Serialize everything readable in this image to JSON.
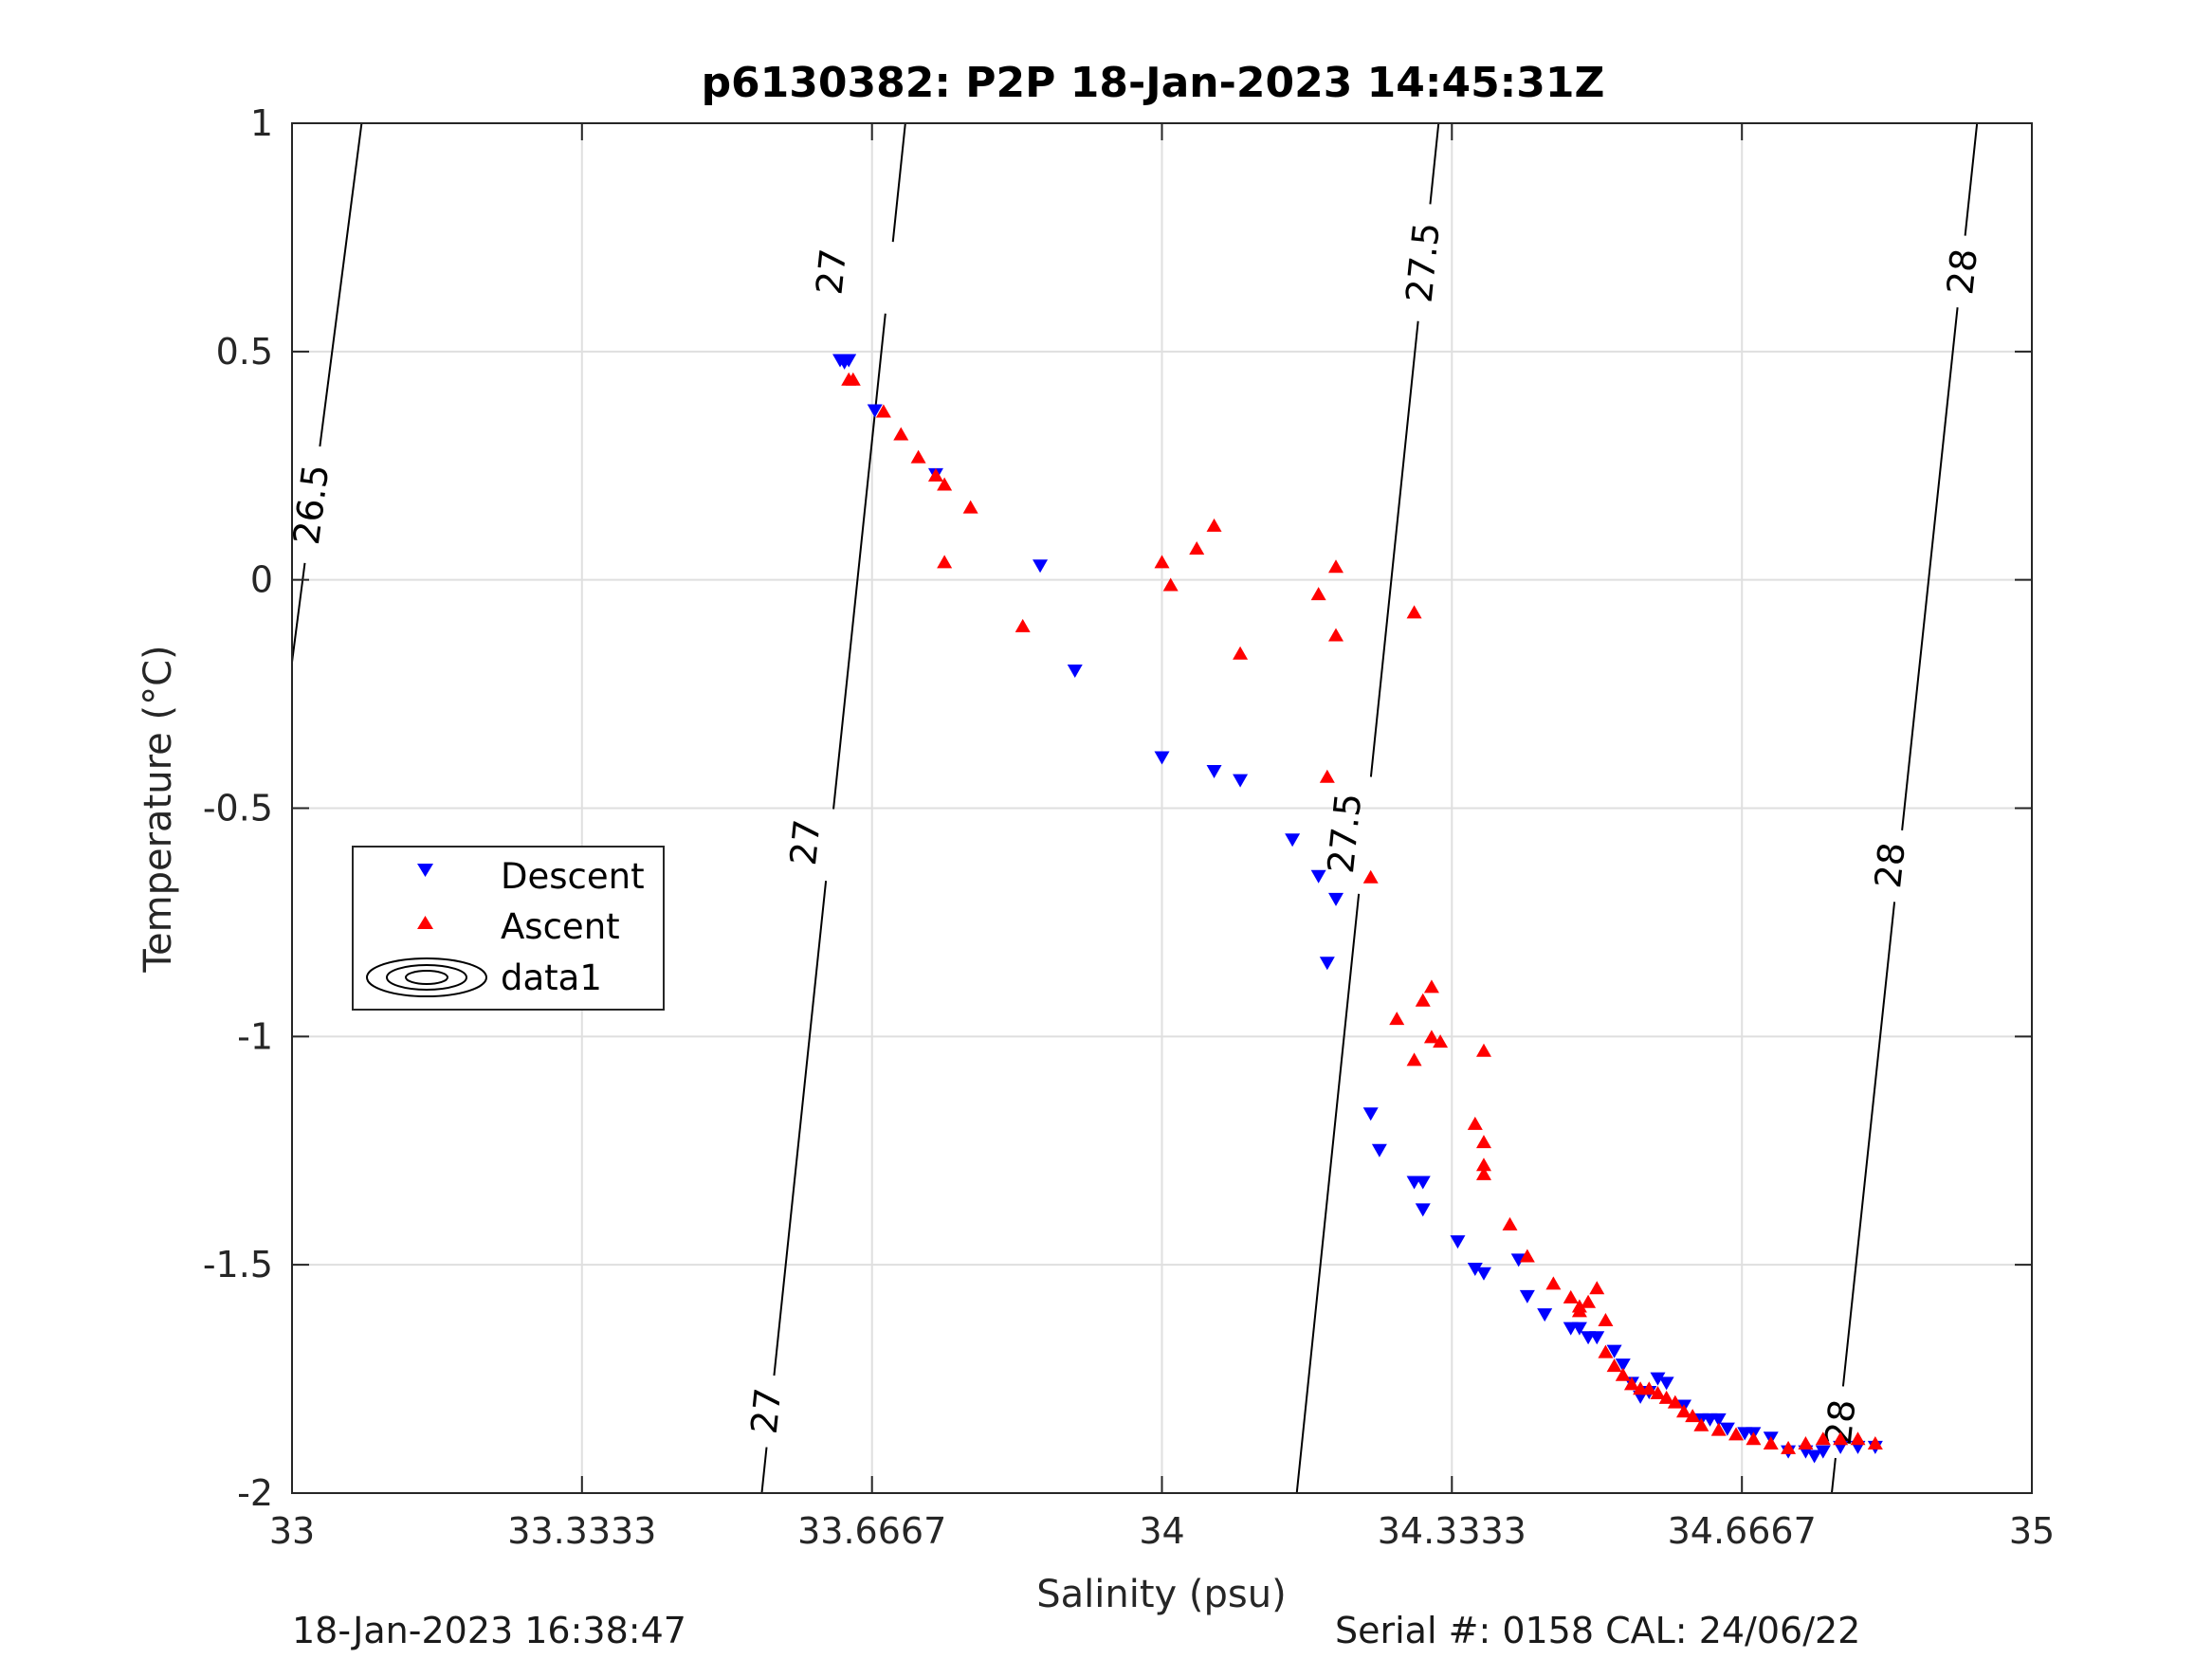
{
  "chart_data": {
    "type": "scatter",
    "title": "p6130382: P2P 18-Jan-2023 14:45:31Z",
    "xlabel": "Salinity (psu)",
    "ylabel": "Temperature (°C)",
    "xlim": [
      33,
      35
    ],
    "ylim": [
      -2,
      1
    ],
    "xticks": [
      "33",
      "33.3333",
      "33.6667",
      "34",
      "34.3333",
      "34.6667",
      "35"
    ],
    "xtick_values": [
      33,
      33.3333,
      33.6667,
      34,
      34.3333,
      34.6667,
      35
    ],
    "yticks": [
      "1",
      "0.5",
      "0",
      "-0.5",
      "-1",
      "-1.5",
      "-2"
    ],
    "ytick_values": [
      1,
      0.5,
      0,
      -0.5,
      -1,
      -1.5,
      -2
    ],
    "grid": true,
    "legend_position": "middle-left",
    "series": [
      {
        "name": "Descent",
        "marker": "triangle-down",
        "color": "#0000ff",
        "points": [
          [
            33.63,
            0.48
          ],
          [
            33.64,
            0.48
          ],
          [
            33.635,
            0.475
          ],
          [
            33.67,
            0.37
          ],
          [
            33.74,
            0.23
          ],
          [
            33.86,
            0.03
          ],
          [
            33.9,
            -0.2
          ],
          [
            34.0,
            -0.39
          ],
          [
            34.06,
            -0.42
          ],
          [
            34.09,
            -0.44
          ],
          [
            34.15,
            -0.57
          ],
          [
            34.18,
            -0.65
          ],
          [
            34.2,
            -0.7
          ],
          [
            34.19,
            -0.84
          ],
          [
            34.24,
            -1.17
          ],
          [
            34.25,
            -1.25
          ],
          [
            34.29,
            -1.32
          ],
          [
            34.3,
            -1.32
          ],
          [
            34.3,
            -1.38
          ],
          [
            34.34,
            -1.45
          ],
          [
            34.36,
            -1.51
          ],
          [
            34.37,
            -1.52
          ],
          [
            34.41,
            -1.49
          ],
          [
            34.42,
            -1.57
          ],
          [
            34.44,
            -1.61
          ],
          [
            34.47,
            -1.64
          ],
          [
            34.48,
            -1.64
          ],
          [
            34.49,
            -1.66
          ],
          [
            34.5,
            -1.66
          ],
          [
            34.52,
            -1.69
          ],
          [
            34.53,
            -1.72
          ],
          [
            34.54,
            -1.76
          ],
          [
            34.55,
            -1.79
          ],
          [
            34.56,
            -1.78
          ],
          [
            34.57,
            -1.75
          ],
          [
            34.58,
            -1.76
          ],
          [
            34.6,
            -1.81
          ],
          [
            34.62,
            -1.84
          ],
          [
            34.63,
            -1.84
          ],
          [
            34.64,
            -1.84
          ],
          [
            34.65,
            -1.86
          ],
          [
            34.67,
            -1.87
          ],
          [
            34.68,
            -1.87
          ],
          [
            34.7,
            -1.88
          ],
          [
            34.72,
            -1.91
          ],
          [
            34.74,
            -1.91
          ],
          [
            34.75,
            -1.92
          ],
          [
            34.76,
            -1.91
          ],
          [
            34.78,
            -1.9
          ],
          [
            34.8,
            -1.9
          ],
          [
            34.82,
            -1.9
          ]
        ]
      },
      {
        "name": "Ascent",
        "marker": "triangle-up",
        "color": "#ff0000",
        "points": [
          [
            33.64,
            0.44
          ],
          [
            33.645,
            0.44
          ],
          [
            33.68,
            0.37
          ],
          [
            33.7,
            0.32
          ],
          [
            33.72,
            0.27
          ],
          [
            33.74,
            0.23
          ],
          [
            33.75,
            0.21
          ],
          [
            33.75,
            0.04
          ],
          [
            33.78,
            0.16
          ],
          [
            33.84,
            -0.1
          ],
          [
            34.0,
            0.04
          ],
          [
            34.01,
            -0.01
          ],
          [
            34.04,
            0.07
          ],
          [
            34.06,
            0.12
          ],
          [
            34.09,
            -0.16
          ],
          [
            34.18,
            -0.03
          ],
          [
            34.2,
            0.03
          ],
          [
            34.2,
            -0.12
          ],
          [
            34.29,
            -0.07
          ],
          [
            34.19,
            -0.43
          ],
          [
            34.24,
            -0.65
          ],
          [
            34.27,
            -0.96
          ],
          [
            34.3,
            -0.92
          ],
          [
            34.31,
            -0.89
          ],
          [
            34.29,
            -1.05
          ],
          [
            34.31,
            -1.0
          ],
          [
            34.32,
            -1.01
          ],
          [
            34.37,
            -1.03
          ],
          [
            34.36,
            -1.19
          ],
          [
            34.37,
            -1.23
          ],
          [
            34.37,
            -1.28
          ],
          [
            34.37,
            -1.3
          ],
          [
            34.4,
            -1.41
          ],
          [
            34.42,
            -1.48
          ],
          [
            34.45,
            -1.54
          ],
          [
            34.47,
            -1.57
          ],
          [
            34.48,
            -1.59
          ],
          [
            34.48,
            -1.6
          ],
          [
            34.49,
            -1.58
          ],
          [
            34.5,
            -1.55
          ],
          [
            34.51,
            -1.62
          ],
          [
            34.51,
            -1.69
          ],
          [
            34.52,
            -1.72
          ],
          [
            34.53,
            -1.74
          ],
          [
            34.54,
            -1.76
          ],
          [
            34.55,
            -1.77
          ],
          [
            34.56,
            -1.77
          ],
          [
            34.57,
            -1.78
          ],
          [
            34.58,
            -1.79
          ],
          [
            34.59,
            -1.8
          ],
          [
            34.6,
            -1.82
          ],
          [
            34.61,
            -1.83
          ],
          [
            34.62,
            -1.85
          ],
          [
            34.64,
            -1.86
          ],
          [
            34.66,
            -1.87
          ],
          [
            34.68,
            -1.88
          ],
          [
            34.7,
            -1.89
          ],
          [
            34.72,
            -1.9
          ],
          [
            34.74,
            -1.89
          ],
          [
            34.76,
            -1.88
          ],
          [
            34.78,
            -1.88
          ],
          [
            34.8,
            -1.88
          ],
          [
            34.82,
            -1.89
          ]
        ]
      },
      {
        "name": "data1",
        "type": "contour",
        "color": "#000000",
        "contours": [
          {
            "level": "26.5",
            "line": [
              [
                33.0,
                -0.18
              ],
              [
                33.08,
                1.0
              ]
            ],
            "labels": [
              [
                33.022,
                0.165
              ]
            ]
          },
          {
            "level": "27",
            "line": [
              [
                33.54,
                -2.0
              ],
              [
                33.705,
                1.0
              ]
            ],
            "labels": [
              [
                33.62,
                0.675
              ],
              [
                33.59,
                -0.575
              ],
              [
                33.545,
                -1.82
              ]
            ]
          },
          {
            "level": "27.5",
            "line": [
              [
                34.155,
                -2.0
              ],
              [
                34.318,
                1.0
              ]
            ],
            "labels": [
              [
                34.3,
                0.695
              ],
              [
                34.21,
                -0.555
              ]
            ]
          },
          {
            "level": "28",
            "line": [
              [
                34.77,
                -2.0
              ],
              [
                34.937,
                1.0
              ]
            ],
            "labels": [
              [
                34.92,
                0.675
              ],
              [
                34.837,
                -0.625
              ],
              [
                34.78,
                -1.845
              ]
            ]
          }
        ]
      }
    ]
  },
  "footer": {
    "left": "18-Jan-2023 16:38:47",
    "right": "Serial #: 0158  CAL: 24/06/22"
  }
}
